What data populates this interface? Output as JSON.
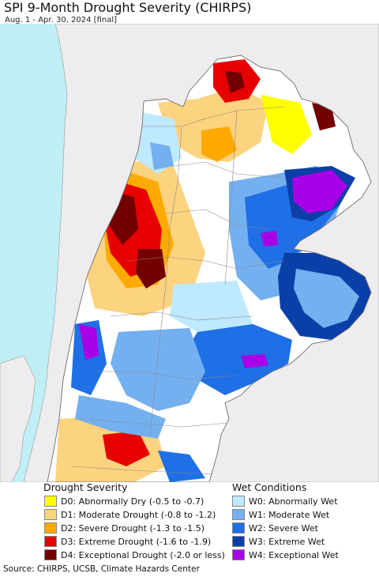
{
  "title": "SPI 9-Month Drought Severity (CHIRPS)",
  "subtitle": "Aug. 1 - Apr. 30, 2024 [final]",
  "legend": {
    "drought_title": "Drought Severity",
    "wet_title": "Wet Conditions",
    "drought": [
      {
        "label": "D0: Abnormally Dry (-0.5 to -0.7)",
        "color": "#ffff00"
      },
      {
        "label": "D1: Moderate Drought (-0.8 to -1.2)",
        "color": "#fcd37f"
      },
      {
        "label": "D2: Severe Drought (-1.3 to -1.5)",
        "color": "#ffaa00"
      },
      {
        "label": "D3: Extreme Drought (-1.6 to -1.9)",
        "color": "#e60000"
      },
      {
        "label": "D4: Exceptional Drought (-2.0 or less)",
        "color": "#730000"
      }
    ],
    "wet": [
      {
        "label": "W0: Abnormally Wet",
        "color": "#bfe9ff"
      },
      {
        "label": "W1: Moderate Wet",
        "color": "#74b0f0"
      },
      {
        "label": "W2: Severe Wet",
        "color": "#1f6fe6"
      },
      {
        "label": "W3: Extreme Wet",
        "color": "#0b3fa8"
      },
      {
        "label": "W4: Exceptional Wet",
        "color": "#a800e6"
      }
    ]
  },
  "map": {
    "ocean_color": "#bfeff5",
    "land_outside_color": "#eeecee",
    "region_base_color": "#ffffff"
  },
  "source": "Source: CHIRPS, UCSB, Climate Hazards Center"
}
